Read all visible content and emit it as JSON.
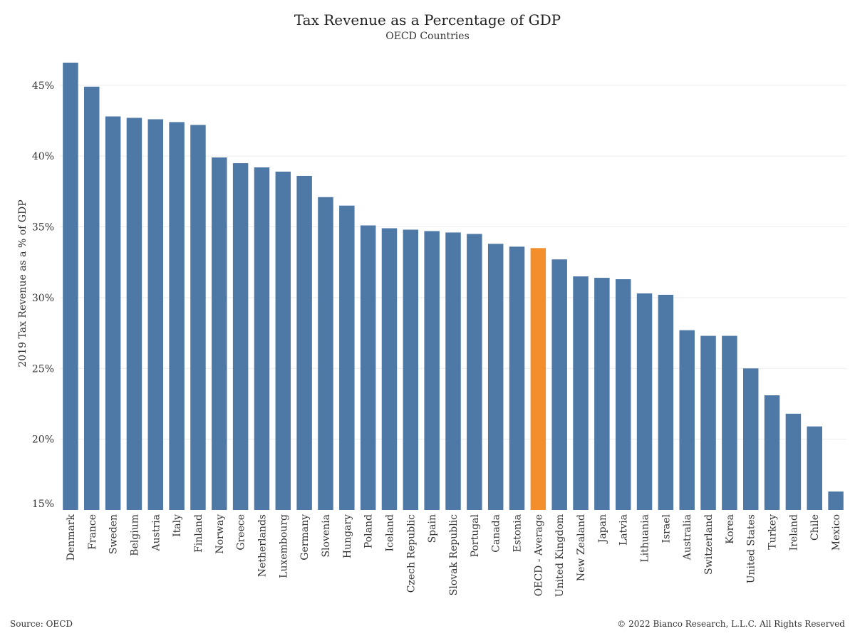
{
  "title": "Tax Revenue as a Percentage of GDP",
  "subtitle": "OECD Countries",
  "source": "Source: OECD",
  "copyright": "© 2022 Bianco Research, L.L.C. All Rights Reserved",
  "colors": {
    "bar": "#4e79a7",
    "highlight": "#f28e2b",
    "grid": "#ececec"
  },
  "chart_data": {
    "type": "bar",
    "title": "Tax Revenue as a Percentage of GDP",
    "subtitle": "OECD Countries",
    "xlabel": "",
    "ylabel": "2019 Tax Revenue as a % of GDP",
    "ylim": [
      15,
      47
    ],
    "yticks": [
      15,
      20,
      25,
      30,
      35,
      40,
      45
    ],
    "ytick_labels": [
      "15%",
      "20%",
      "25%",
      "30%",
      "35%",
      "40%",
      "45%"
    ],
    "grid": true,
    "highlight": "OECD - Average",
    "categories": [
      "Denmark",
      "France",
      "Sweden",
      "Belgium",
      "Austria",
      "Italy",
      "Finland",
      "Norway",
      "Greece",
      "Netherlands",
      "Luxembourg",
      "Germany",
      "Slovenia",
      "Hungary",
      "Poland",
      "Iceland",
      "Czech Republic",
      "Spain",
      "Slovak Republic",
      "Portugal",
      "Canada",
      "Estonia",
      "OECD - Average",
      "United Kingdom",
      "New Zealand",
      "Japan",
      "Latvia",
      "Lithuania",
      "Israel",
      "Australia",
      "Switzerland",
      "Korea",
      "United States",
      "Turkey",
      "Ireland",
      "Chile",
      "Mexico"
    ],
    "values": [
      46.6,
      44.9,
      42.8,
      42.7,
      42.6,
      42.4,
      42.2,
      39.9,
      39.5,
      39.2,
      38.9,
      38.6,
      37.1,
      36.5,
      35.1,
      34.9,
      34.8,
      34.7,
      34.6,
      34.5,
      33.8,
      33.6,
      33.5,
      32.7,
      31.5,
      31.4,
      31.3,
      30.3,
      30.2,
      27.7,
      27.3,
      27.3,
      25.0,
      23.1,
      21.8,
      20.9,
      16.3
    ]
  }
}
